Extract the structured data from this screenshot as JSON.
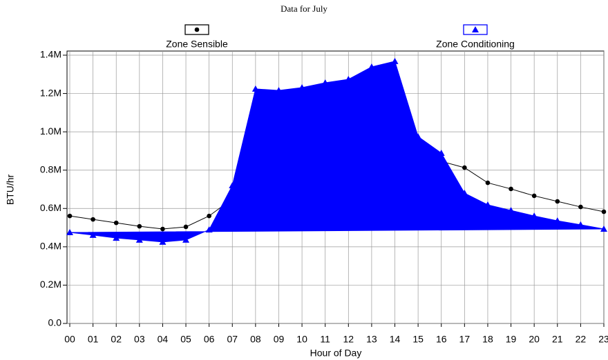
{
  "chart_data": {
    "type": "area-line",
    "title": "Data for July",
    "xlabel": "Hour of Day",
    "ylabel": "BTU/hr",
    "categories": [
      "00",
      "01",
      "02",
      "03",
      "04",
      "05",
      "06",
      "07",
      "08",
      "09",
      "10",
      "11",
      "12",
      "13",
      "14",
      "15",
      "16",
      "17",
      "18",
      "19",
      "20",
      "21",
      "22",
      "23"
    ],
    "series": [
      {
        "name": "Zone Sensible",
        "color": "#000000",
        "marker": "circle",
        "values": [
          561000,
          543000,
          525000,
          507000,
          493000,
          504000,
          561000,
          650000,
          750000,
          800000,
          850000,
          900000,
          920000,
          930000,
          940000,
          900000,
          846000,
          813000,
          734000,
          702000,
          666000,
          637000,
          608000,
          583000
        ]
      },
      {
        "name": "Zone Conditioning",
        "color": "#0000ff",
        "marker": "triangle",
        "fill": true,
        "values": [
          475000,
          461000,
          446000,
          436000,
          425000,
          436000,
          489000,
          720000,
          1224000,
          1216000,
          1231000,
          1256000,
          1274000,
          1339000,
          1368000,
          975000,
          889000,
          680000,
          619000,
          590000,
          561000,
          536000,
          515000,
          493000
        ]
      }
    ],
    "ylim": [
      0,
      1400000
    ],
    "yticks": [
      {
        "value": 0,
        "label": "0.0"
      },
      {
        "value": 200000,
        "label": "0.2M"
      },
      {
        "value": 400000,
        "label": "0.4M"
      },
      {
        "value": 600000,
        "label": "0.6M"
      },
      {
        "value": 800000,
        "label": "0.8M"
      },
      {
        "value": 1000000,
        "label": "1.0M"
      },
      {
        "value": 1200000,
        "label": "1.2M"
      },
      {
        "value": 1400000,
        "label": "1.4M"
      }
    ],
    "grid": true,
    "legend": "top"
  }
}
